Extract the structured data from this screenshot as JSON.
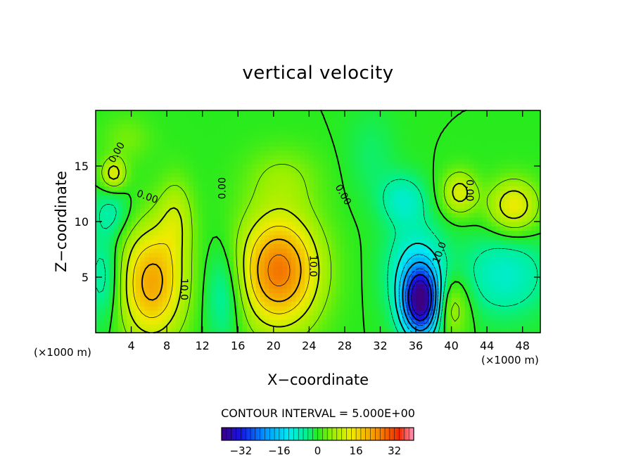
{
  "chart_data": {
    "type": "heatmap",
    "title": "vertical velocity",
    "xlabel": "X−coordinate",
    "ylabel": "Z−coordinate",
    "x_unit_left": "(×1000 m)",
    "x_unit_right": "(×1000 m)",
    "xlim": [
      0,
      50
    ],
    "ylim": [
      0,
      20
    ],
    "xticks": [
      4,
      8,
      12,
      16,
      20,
      24,
      28,
      32,
      36,
      40,
      44,
      48
    ],
    "yticks": [
      5,
      10,
      15
    ],
    "contour_interval_label": "CONTOUR INTERVAL = 5.000E+00",
    "colorbar_ticks": [
      -32,
      -16,
      0,
      16,
      32
    ],
    "colorbar_range": [
      -40,
      40
    ],
    "contour_labels": [
      {
        "text": "0.00",
        "x": 2.4,
        "y": 16.2,
        "angle": -60
      },
      {
        "text": "0.00",
        "x": 5.8,
        "y": 12.2,
        "angle": 20
      },
      {
        "text": "10.0",
        "x": 9.9,
        "y": 3.9,
        "angle": 90
      },
      {
        "text": "0.00",
        "x": 14.3,
        "y": 13.0,
        "angle": -90
      },
      {
        "text": "10.0",
        "x": 24.4,
        "y": 6.0,
        "angle": 90
      },
      {
        "text": "0.00",
        "x": 27.8,
        "y": 12.4,
        "angle": 60
      },
      {
        "text": "10.0",
        "x": 38.7,
        "y": 7.2,
        "angle": -70
      },
      {
        "text": "0.00",
        "x": 42.0,
        "y": 12.8,
        "angle": 90
      }
    ],
    "features": [
      {
        "x": 6.3,
        "y": 4.5,
        "sx": 2.6,
        "sy": 3.6,
        "value": 22
      },
      {
        "x": 20.6,
        "y": 5.6,
        "sx": 3.2,
        "sy": 3.6,
        "value": 27
      },
      {
        "x": 36.6,
        "y": 2.8,
        "sx": 1.5,
        "sy": 2.2,
        "value": -38
      },
      {
        "x": 36.0,
        "y": 5.8,
        "sx": 2.4,
        "sy": 3.0,
        "value": -10
      },
      {
        "x": 47.0,
        "y": 11.4,
        "sx": 2.0,
        "sy": 1.7,
        "value": 14
      },
      {
        "x": 40.9,
        "y": 12.6,
        "sx": 1.4,
        "sy": 1.4,
        "value": 12
      },
      {
        "x": 2.0,
        "y": 14.3,
        "sx": 1.0,
        "sy": 1.0,
        "value": 12
      },
      {
        "x": 39.8,
        "y": 2.4,
        "sx": 1.5,
        "sy": 2.0,
        "value": 10
      },
      {
        "x": 14.5,
        "y": 3.6,
        "sx": 1.6,
        "sy": 3.2,
        "value": -8
      },
      {
        "x": 46.0,
        "y": 5.2,
        "sx": 3.4,
        "sy": 2.6,
        "value": -9
      },
      {
        "x": 1.0,
        "y": 5.0,
        "sx": 1.5,
        "sy": 3.0,
        "value": -8
      },
      {
        "x": 1.8,
        "y": 10.8,
        "sx": 1.6,
        "sy": 1.5,
        "value": -6
      },
      {
        "x": 34.6,
        "y": 12.0,
        "sx": 1.8,
        "sy": 1.6,
        "value": -8
      },
      {
        "x": 9.0,
        "y": 10.5,
        "sx": 1.4,
        "sy": 2.5,
        "value": 8
      },
      {
        "x": 21.0,
        "y": 14.0,
        "sx": 3.0,
        "sy": 2.0,
        "value": 5
      },
      {
        "x": 3.5,
        "y": 17.5,
        "sx": 2.0,
        "sy": 1.5,
        "value": 4
      },
      {
        "x": 31.0,
        "y": 16.0,
        "sx": 2.0,
        "sy": 3.0,
        "value": -3
      }
    ]
  }
}
